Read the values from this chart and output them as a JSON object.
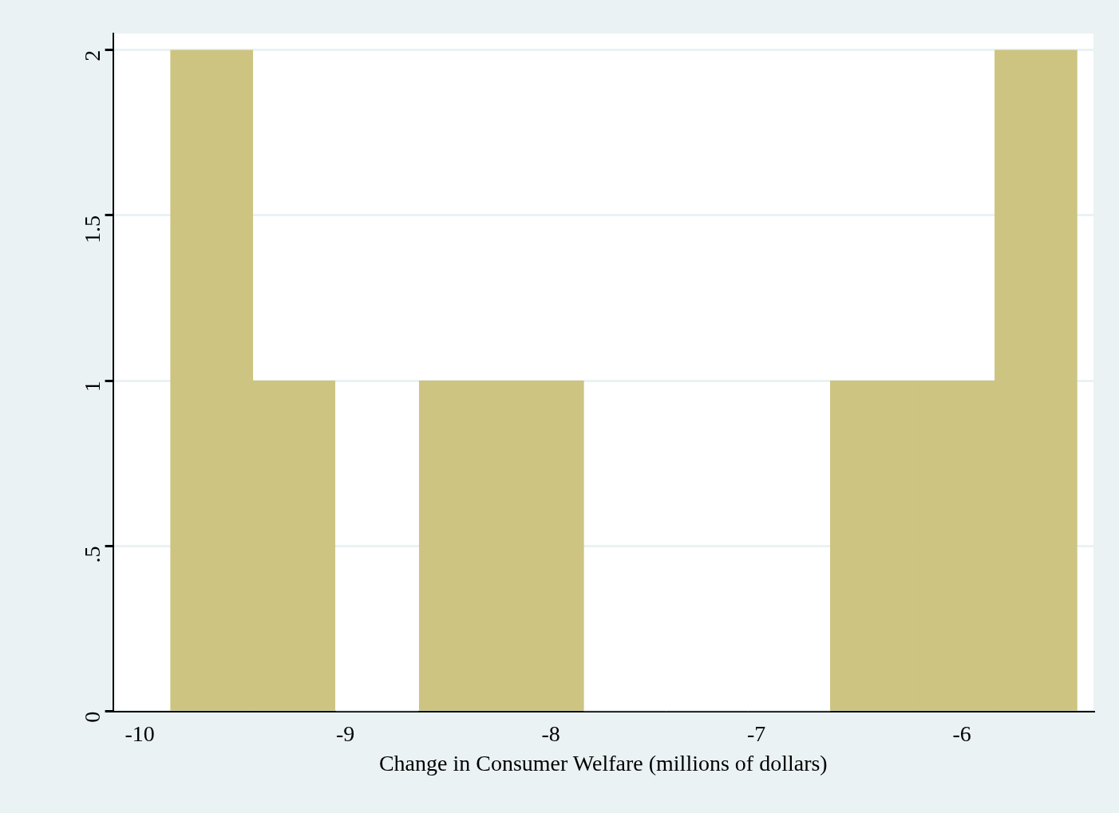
{
  "chart_data": {
    "type": "histogram",
    "xlabel": "Change in Consumer Welfare (millions of dollars)",
    "bins": [
      -9.85,
      -9.45,
      -9.05,
      -8.64,
      -8.24,
      -7.84,
      -7.44,
      -7.04,
      -6.64,
      -6.24,
      -5.84,
      -5.44
    ],
    "values": [
      2,
      1,
      0,
      1,
      1,
      0,
      0,
      0,
      1,
      1,
      2
    ],
    "color": "#cdc482",
    "xlim": [
      -10.13,
      -5.36
    ],
    "xticks": [
      -10,
      -9,
      -8,
      -7,
      -6
    ],
    "ylim": [
      0,
      2.05
    ],
    "yticks": [
      0,
      {
        "value": 0.5,
        "label": ".5"
      },
      1,
      1.5,
      2
    ],
    "grid": "y"
  }
}
